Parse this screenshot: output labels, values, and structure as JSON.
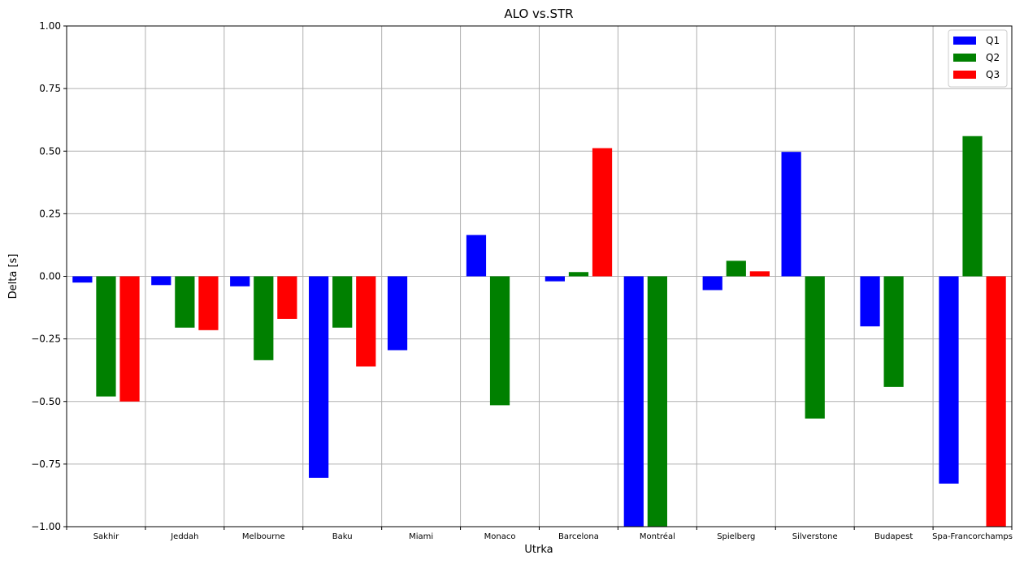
{
  "chart_data": {
    "type": "bar",
    "title": "ALO vs.STR",
    "xlabel": "Utrka",
    "ylabel": "Delta [s]",
    "ylim": [
      -1.0,
      1.0
    ],
    "yticks": [
      -1.0,
      -0.75,
      -0.5,
      -0.25,
      0.0,
      0.25,
      0.5,
      0.75,
      1.0
    ],
    "ytick_labels": [
      "−1.00",
      "−0.75",
      "−0.50",
      "−0.25",
      "0.00",
      "0.25",
      "0.50",
      "0.75",
      "1.00"
    ],
    "grid": true,
    "legend_position": "top-right",
    "categories": [
      "Sakhir",
      "Jeddah",
      "Melbourne",
      "Baku",
      "Miami",
      "Monaco",
      "Barcelona",
      "Montréal",
      "Spielberg",
      "Silverstone",
      "Budapest",
      "Spa-Francorchamps"
    ],
    "series": [
      {
        "name": "Q1",
        "color": "#0000ff",
        "values": [
          -0.025,
          -0.035,
          -0.04,
          -0.805,
          -0.295,
          0.165,
          -0.02,
          -1.0,
          -0.055,
          0.497,
          -0.2,
          -0.828
        ]
      },
      {
        "name": "Q2",
        "color": "#008000",
        "values": [
          -0.48,
          -0.205,
          -0.335,
          -0.205,
          null,
          -0.515,
          0.017,
          -1.0,
          0.062,
          -0.568,
          -0.442,
          0.56
        ]
      },
      {
        "name": "Q3",
        "color": "#ff0000",
        "values": [
          -0.5,
          -0.215,
          -0.17,
          -0.36,
          null,
          null,
          0.512,
          null,
          0.02,
          null,
          null,
          -1.0
        ]
      }
    ]
  }
}
